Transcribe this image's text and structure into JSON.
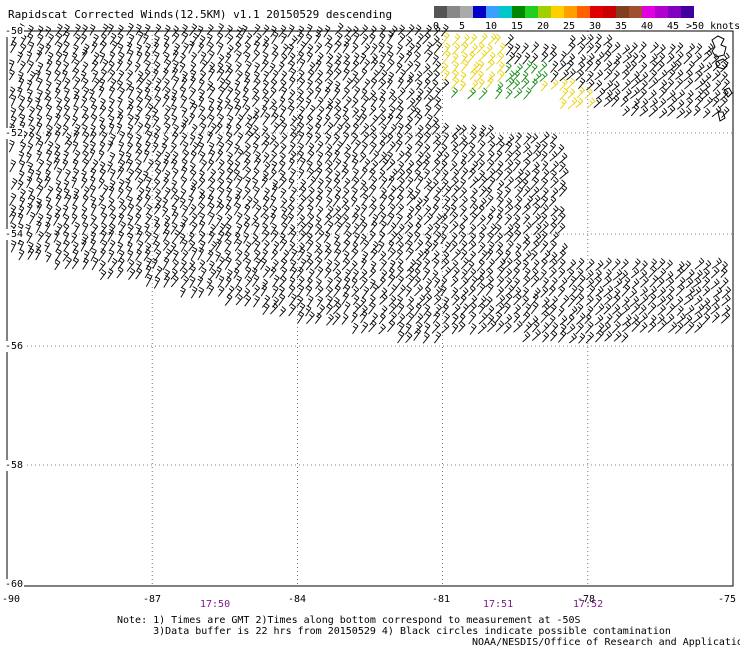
{
  "title": "Rapidscat Corrected Winds(12.5KM) v1.1 20150529 descending",
  "colorbar": {
    "unit_label": ">50 knots",
    "tick_labels": [
      "0",
      "5",
      "10",
      "15",
      "20",
      "25",
      "30",
      "35",
      "40",
      "45"
    ],
    "colors": [
      "#555555",
      "#888888",
      "#aaaaaa",
      "#0000c8",
      "#3aa0ff",
      "#00c8c8",
      "#008800",
      "#20d020",
      "#a0d000",
      "#ffd000",
      "#ffa000",
      "#ff6000",
      "#e00000",
      "#c80000",
      "#804020",
      "#a05030",
      "#e000e0",
      "#b000d0",
      "#8000c0",
      "#4000a0"
    ]
  },
  "map": {
    "lon_labels": [
      "-90",
      "-87",
      "-84",
      "-81",
      "-78",
      "-75"
    ],
    "lat_labels": [
      "-50",
      "-52",
      "-54",
      "-56",
      "-58",
      "-60"
    ],
    "lon_range": [
      -90,
      -75
    ],
    "lat_range": [
      -60,
      -50
    ]
  },
  "times": [
    "17:50",
    "17:51",
    "17:52"
  ],
  "note": "Note: 1) Times are GMT 2)Times along bottom correspond to measurement at -50S\n      3)Data buffer is 22 hrs from 20150529 4) Black circles indicate possible contamination",
  "credit": "NOAA/NESDIS/Office of Research and Applications"
}
